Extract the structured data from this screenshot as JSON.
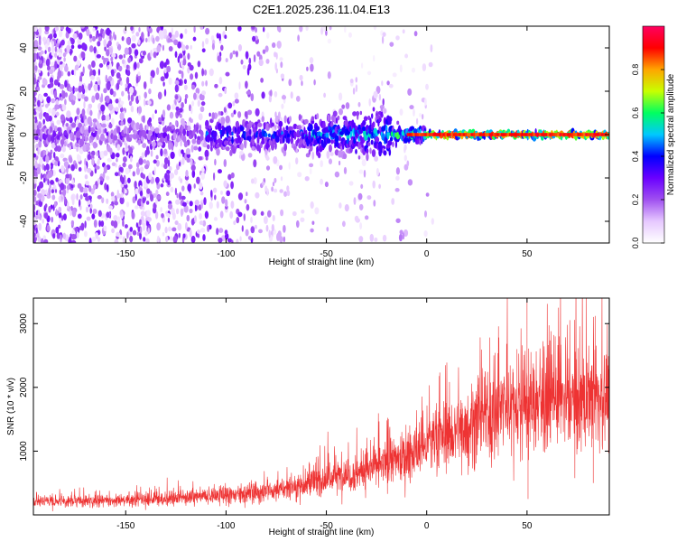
{
  "title": "C2E1.2025.236.11.04.E13",
  "chart_data": [
    {
      "type": "heatmap",
      "xlabel": "Height of straight line (km)",
      "ylabel": "Frequency (Hz)",
      "xlim": [
        -196,
        91
      ],
      "ylim": [
        -50,
        50
      ],
      "xticks": [
        -150,
        -100,
        -50,
        0,
        50
      ],
      "yticks": [
        -40,
        -20,
        0,
        20,
        40
      ],
      "colorbar": {
        "label": "Normalized spectral amplitude",
        "range": [
          0,
          1
        ],
        "ticks": [
          "0.0",
          "0.2",
          "0.4",
          "0.6",
          "0.8"
        ],
        "tick_values": [
          0,
          0.2,
          0.4,
          0.6,
          0.8
        ],
        "colors": [
          "#ffffff",
          "#e6c8ff",
          "#a050f0",
          "#6a00ff",
          "#0000ff",
          "#00c8ff",
          "#00ff60",
          "#c8ff00",
          "#ffa500",
          "#ff0000",
          "#ff0060"
        ]
      },
      "features": {
        "carrier_frequency_hz": 0,
        "carrier_amplitude_above_0km": 0.95,
        "noise_region_x": [
          -196,
          -20
        ],
        "band_spread_hz_at_-20km": 10
      }
    },
    {
      "type": "line",
      "xlabel": "Height of straight line (km)",
      "ylabel": "SNR (10 * v/v)",
      "xlim": [
        -196,
        91
      ],
      "ylim": [
        0,
        3400
      ],
      "xticks": [
        -150,
        -100,
        -50,
        0,
        50
      ],
      "yticks": [
        1000,
        2000,
        3000
      ],
      "series_color": "#ee3333",
      "trend": {
        "x": [
          -196,
          -150,
          -100,
          -75,
          -50,
          -30,
          -15,
          0,
          20,
          40,
          60,
          80,
          91
        ],
        "y": [
          200,
          230,
          300,
          380,
          560,
          700,
          850,
          1080,
          1400,
          1700,
          1800,
          1800,
          1850
        ]
      },
      "spikes": [
        {
          "x": 50,
          "y": 3400
        },
        {
          "x": 50.5,
          "y": 250
        },
        {
          "x": 84,
          "y": 3120
        },
        {
          "x": 83,
          "y": 500
        },
        {
          "x": 90,
          "y": 2900
        },
        {
          "x": 45,
          "y": 2600
        }
      ]
    }
  ]
}
